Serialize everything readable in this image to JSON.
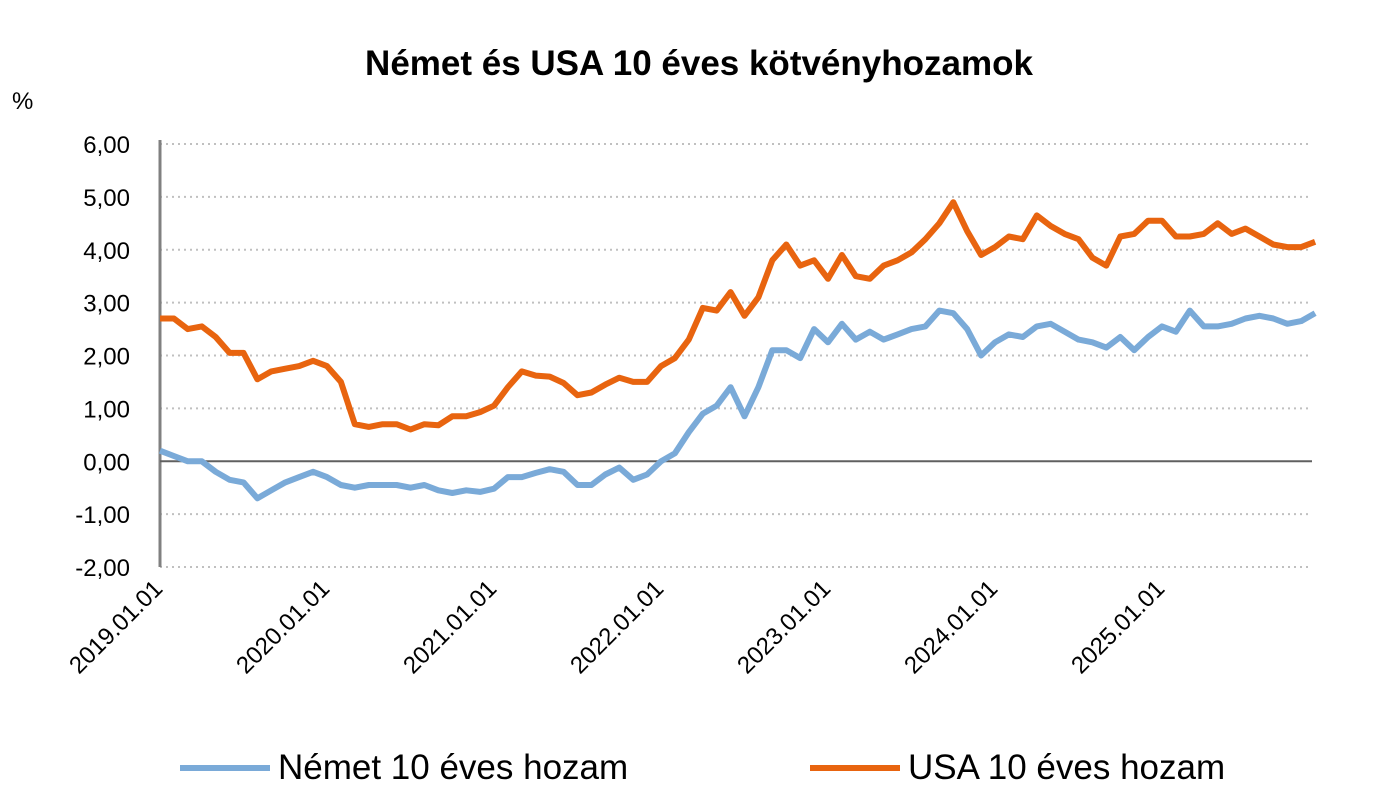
{
  "chart_data": {
    "type": "line",
    "title": "Német és USA 10 éves kötvényhozamok",
    "ylabel": "%",
    "xlabel": "",
    "ylim": [
      -2,
      6
    ],
    "yticks": [
      "6,00",
      "5,00",
      "4,00",
      "3,00",
      "2,00",
      "1,00",
      "0,00",
      "-1,00",
      "-2,00"
    ],
    "ytick_values": [
      6,
      5,
      4,
      3,
      2,
      1,
      0,
      -1,
      -2
    ],
    "xticks": [
      "2019.01.01",
      "2020.01.01",
      "2021.01.01",
      "2022.01.01",
      "2023.01.01",
      "2024.01.01",
      "2025.01.01"
    ],
    "grid": "horizontal dotted",
    "legend_position": "bottom",
    "x_start": "2019-01",
    "x_frequency": "monthly",
    "series": [
      {
        "name": "Német 10 éves hozam",
        "color": "#7aaad8",
        "values": [
          0.2,
          0.1,
          0.0,
          0.0,
          -0.2,
          -0.35,
          -0.4,
          -0.7,
          -0.55,
          -0.4,
          -0.3,
          -0.2,
          -0.3,
          -0.45,
          -0.5,
          -0.45,
          -0.45,
          -0.45,
          -0.5,
          -0.45,
          -0.55,
          -0.6,
          -0.55,
          -0.58,
          -0.52,
          -0.3,
          -0.3,
          -0.22,
          -0.15,
          -0.2,
          -0.45,
          -0.45,
          -0.25,
          -0.12,
          -0.35,
          -0.25,
          0.0,
          0.15,
          0.55,
          0.9,
          1.05,
          1.4,
          0.85,
          1.4,
          2.1,
          2.1,
          1.95,
          2.5,
          2.25,
          2.6,
          2.3,
          2.45,
          2.3,
          2.4,
          2.5,
          2.55,
          2.85,
          2.8,
          2.5,
          2.0,
          2.25,
          2.4,
          2.35,
          2.55,
          2.6,
          2.45,
          2.3,
          2.25,
          2.15,
          2.35,
          2.1,
          2.35,
          2.55,
          2.45,
          2.85,
          2.55,
          2.55,
          2.6,
          2.7,
          2.75,
          2.7,
          2.6,
          2.65,
          2.8
        ]
      },
      {
        "name": "USA 10 éves hozam",
        "color": "#e8640f",
        "values": [
          2.7,
          2.7,
          2.5,
          2.55,
          2.35,
          2.05,
          2.05,
          1.55,
          1.7,
          1.75,
          1.8,
          1.9,
          1.8,
          1.5,
          0.7,
          0.65,
          0.7,
          0.7,
          0.6,
          0.7,
          0.68,
          0.85,
          0.85,
          0.93,
          1.05,
          1.4,
          1.7,
          1.62,
          1.6,
          1.48,
          1.25,
          1.3,
          1.45,
          1.58,
          1.5,
          1.5,
          1.8,
          1.95,
          2.3,
          2.9,
          2.85,
          3.2,
          2.75,
          3.1,
          3.8,
          4.1,
          3.7,
          3.8,
          3.45,
          3.9,
          3.5,
          3.45,
          3.7,
          3.8,
          3.95,
          4.2,
          4.5,
          4.9,
          4.35,
          3.9,
          4.05,
          4.25,
          4.2,
          4.65,
          4.45,
          4.3,
          4.2,
          3.85,
          3.7,
          4.25,
          4.3,
          4.55,
          4.55,
          4.25,
          4.25,
          4.3,
          4.5,
          4.3,
          4.4,
          4.25,
          4.1,
          4.05,
          4.05,
          4.15
        ]
      }
    ]
  }
}
